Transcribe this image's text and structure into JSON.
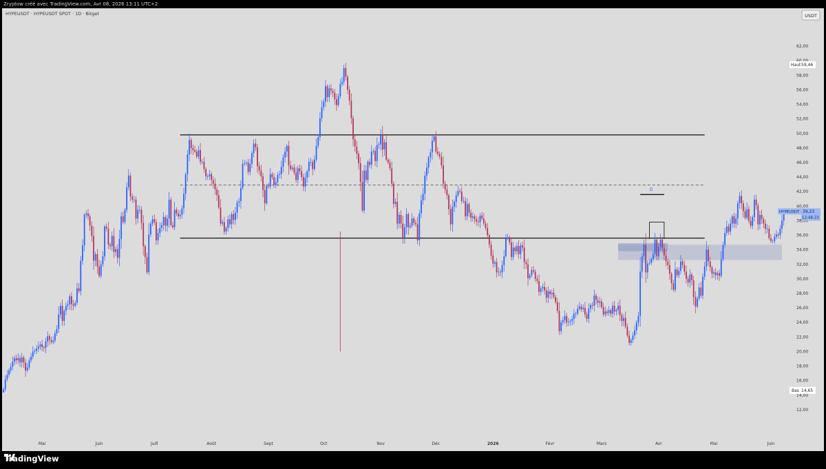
{
  "credit": "Zryptow créé avec TradingView.com, Avr 08, 2026 13:11 UTC+2",
  "symbol_title": "HYPEUSDT · HYPEUSDT SPOT · 1D · Bitget",
  "currency_button": "USDT",
  "high_label": {
    "tag": "Haut",
    "value": "59,46"
  },
  "low_label": {
    "tag": "Bas",
    "value": "14,65"
  },
  "price_label": {
    "symbol": "HYPEUSDT",
    "price": "39,23",
    "countdown": "12:48:23"
  },
  "pattern_label": "D",
  "brand": "TradingView",
  "colors": {
    "up": "#2962ff",
    "down": "#b2365a",
    "background": "#dcdcdc",
    "zone": "#8c98c4"
  },
  "chart_data": {
    "type": "candlestick",
    "title": "HYPEUSDT · HYPEUSDT SPOT · 1D · Bitget",
    "ylim": [
      10,
      64
    ],
    "y_ticks": [
      "62,00",
      "60,00",
      "58,00",
      "56,00",
      "54,00",
      "52,00",
      "50,00",
      "48,00",
      "46,00",
      "44,00",
      "42,00",
      "40,00",
      "38,00",
      "36,00",
      "34,00",
      "32,00",
      "30,00",
      "28,00",
      "26,00",
      "24,00",
      "22,00",
      "20,00",
      "18,00",
      "16,00",
      "14,00",
      "12,00"
    ],
    "x_ticks": [
      {
        "label": "Mai",
        "date": "2025-05-01"
      },
      {
        "label": "Juin",
        "date": "2025-06-01"
      },
      {
        "label": "Juill",
        "date": "2025-07-01"
      },
      {
        "label": "Août",
        "date": "2025-08-01"
      },
      {
        "label": "Sept",
        "date": "2025-09-01"
      },
      {
        "label": "Oct",
        "date": "2025-10-01"
      },
      {
        "label": "Nov",
        "date": "2025-11-01"
      },
      {
        "label": "Déc",
        "date": "2025-12-01"
      },
      {
        "label": "2026",
        "date": "2026-01-01",
        "bold": true
      },
      {
        "label": "Févr",
        "date": "2026-02-01"
      },
      {
        "label": "Mars",
        "date": "2026-03-01"
      },
      {
        "label": "Avr",
        "date": "2026-04-01"
      },
      {
        "label": "Mai",
        "date": "2026-05-01"
      },
      {
        "label": "Juin",
        "date": "2026-06-01"
      }
    ],
    "x_range": [
      "2025-04-10",
      "2026-06-07"
    ],
    "start_date": "2025-04-10",
    "closes": [
      14.8,
      16.2,
      16.8,
      17.4,
      17.9,
      18.6,
      19.1,
      18.8,
      19.1,
      18.5,
      19.2,
      18.5,
      17.4,
      17.8,
      18.8,
      19.3,
      20.0,
      20.1,
      20.4,
      20.7,
      21.0,
      20.6,
      20.5,
      21.4,
      22.1,
      21.6,
      21.3,
      21.5,
      22.5,
      23.1,
      25.1,
      26.3,
      24.2,
      25.6,
      26.3,
      26.5,
      27.6,
      26.5,
      26.3,
      26.7,
      28.7,
      28.3,
      32.5,
      34.6,
      38.8,
      39.0,
      38.6,
      37.3,
      35.9,
      32.5,
      33.4,
      31.7,
      30.4,
      32.0,
      33.1,
      37.2,
      36.9,
      34.7,
      34.5,
      35.9,
      33.7,
      34.1,
      32.9,
      35.5,
      38.6,
      37.8,
      39.5,
      42.6,
      44.2,
      41.3,
      40.9,
      40.9,
      38.3,
      39.5,
      39.5,
      37.7,
      34.5,
      33.0,
      30.9,
      36.1,
      37.6,
      38.2,
      37.8,
      35.3,
      36.3,
      37.0,
      37.4,
      38.5,
      37.3,
      38.3,
      40.9,
      37.4,
      37.1,
      39.5,
      39.0,
      38.6,
      38.8,
      39.7,
      41.7,
      44.4,
      47.1,
      49.1,
      48.0,
      47.7,
      47.5,
      46.8,
      47.7,
      46.1,
      46.1,
      45.1,
      44.1,
      44.1,
      44.4,
      43.6,
      43.1,
      42.3,
      41.5,
      39.8,
      37.6,
      37.8,
      36.5,
      37.0,
      38.2,
      37.5,
      38.9,
      38.1,
      39.1,
      40.5,
      40.7,
      42.5,
      45.8,
      45.9,
      46.0,
      44.7,
      45.8,
      47.3,
      48.6,
      48.1,
      45.5,
      44.9,
      44.1,
      42.2,
      40.4,
      42.8,
      42.7,
      44.4,
      44.0,
      42.9,
      43.3,
      44.3,
      44.4,
      45.4,
      46.7,
      47.5,
      48.3,
      45.6,
      45.1,
      45.3,
      44.6,
      43.6,
      45.2,
      44.8,
      44.0,
      42.7,
      43.9,
      44.8,
      46.1,
      46.1,
      45.1,
      46.4,
      48.3,
      49.5,
      52.1,
      53.6,
      54.4,
      56.5,
      55.0,
      56.2,
      55.9,
      55.6,
      54.7,
      53.9,
      55.1,
      56.8,
      57.1,
      59.0,
      57.8,
      56.0,
      54.5,
      52.1,
      49.2,
      48.2,
      47.2,
      45.9,
      43.3,
      39.4,
      44.9,
      43.6,
      46.1,
      45.7,
      47.5,
      47.6,
      46.2,
      48.4,
      48.5,
      49.9,
      47.8,
      48.8,
      46.4,
      46.0,
      45.2,
      43.1,
      40.3,
      40.6,
      37.6,
      38.8,
      37.6,
      35.7,
      37.1,
      38.9,
      37.1,
      37.3,
      38.3,
      37.7,
      37.5,
      35.3,
      39.0,
      40.8,
      41.7,
      44.2,
      45.3,
      46.7,
      47.4,
      49.0,
      49.6,
      47.5,
      47.2,
      46.8,
      45.6,
      43.1,
      42.3,
      41.5,
      39.6,
      37.5,
      39.9,
      40.6,
      41.5,
      42.1,
      42.0,
      40.7,
      40.7,
      38.6,
      40.3,
      39.1,
      38.4,
      38.6,
      38.2,
      37.9,
      37.8,
      38.7,
      38.3,
      37.6,
      37.0,
      36.0,
      34.7,
      33.2,
      32.1,
      32.3,
      30.9,
      31.0,
      30.9,
      31.9,
      33.1,
      35.6,
      35.7,
      35.0,
      33.0,
      34.3,
      33.8,
      34.5,
      33.4,
      34.6,
      34.3,
      32.3,
      32.0,
      30.1,
      30.5,
      31.2,
      31.0,
      30.0,
      29.7,
      28.2,
      28.7,
      28.9,
      28.4,
      27.4,
      28.3,
      27.9,
      28.1,
      27.5,
      26.8,
      25.6,
      22.8,
      24.0,
      24.3,
      24.9,
      24.0,
      24.1,
      24.2,
      24.5,
      25.2,
      25.2,
      25.9,
      26.2,
      25.8,
      26.0,
      25.1,
      24.5,
      25.9,
      26.4,
      26.3,
      27.7,
      27.1,
      26.7,
      26.9,
      26.1,
      25.1,
      25.5,
      25.3,
      25.7,
      25.2,
      26.3,
      25.5,
      25.7,
      26.3,
      25.0,
      24.2,
      24.6,
      23.4,
      22.2,
      21.2,
      21.6,
      22.2,
      22.9,
      24.0,
      24.9,
      31.0,
      33.1,
      34.7,
      30.9,
      32.1,
      32.2,
      32.7,
      33.4,
      35.4,
      33.1,
      34.4,
      35.4,
      34.2,
      33.2,
      32.4,
      31.9,
      30.7,
      29.4,
      28.5,
      31.3,
      30.5,
      31.1,
      32.4,
      31.9,
      31.0,
      30.0,
      29.5,
      30.6,
      29.8,
      27.5,
      26.2,
      27.3,
      28.8,
      27.7,
      30.3,
      31.7,
      34.0,
      32.4,
      31.6,
      30.7,
      30.9,
      30.5,
      30.8,
      30.4,
      32.7,
      34.7,
      36.3,
      37.2,
      36.5,
      37.6,
      38.6,
      37.6,
      38.3,
      40.4,
      41.4,
      40.4,
      39.3,
      38.4,
      39.6,
      38.0,
      37.3,
      38.5,
      40.9,
      40.1,
      37.5,
      38.8,
      38.2,
      37.6,
      36.9,
      36.9,
      35.6,
      35.2,
      35.2,
      35.8,
      36.1,
      36.0,
      36.9,
      38.0,
      39.23
    ],
    "high": 59.46,
    "low": 14.65,
    "last_price": 39.23,
    "wick_min": 20.0,
    "horizontal_levels": [
      {
        "price": 49.8,
        "from": "2025-07-15",
        "to": "2026-04-26",
        "style": "solid"
      },
      {
        "price": 42.9,
        "from": "2025-07-15",
        "to": "2026-04-26",
        "style": "dashed"
      },
      {
        "price": 35.6,
        "from": "2025-07-15",
        "to": "2026-04-26",
        "style": "solid"
      },
      {
        "price": 41.6,
        "from": "2026-03-22",
        "to": "2026-04-04",
        "style": "solid"
      }
    ],
    "zones": [
      {
        "from_price": 33.8,
        "to_price": 34.9,
        "from": "2026-03-10",
        "to": "2026-04-06"
      },
      {
        "from_price": 32.6,
        "to_price": 34.7,
        "from": "2026-03-10",
        "to": "2026-06-07"
      }
    ],
    "grid": false
  }
}
